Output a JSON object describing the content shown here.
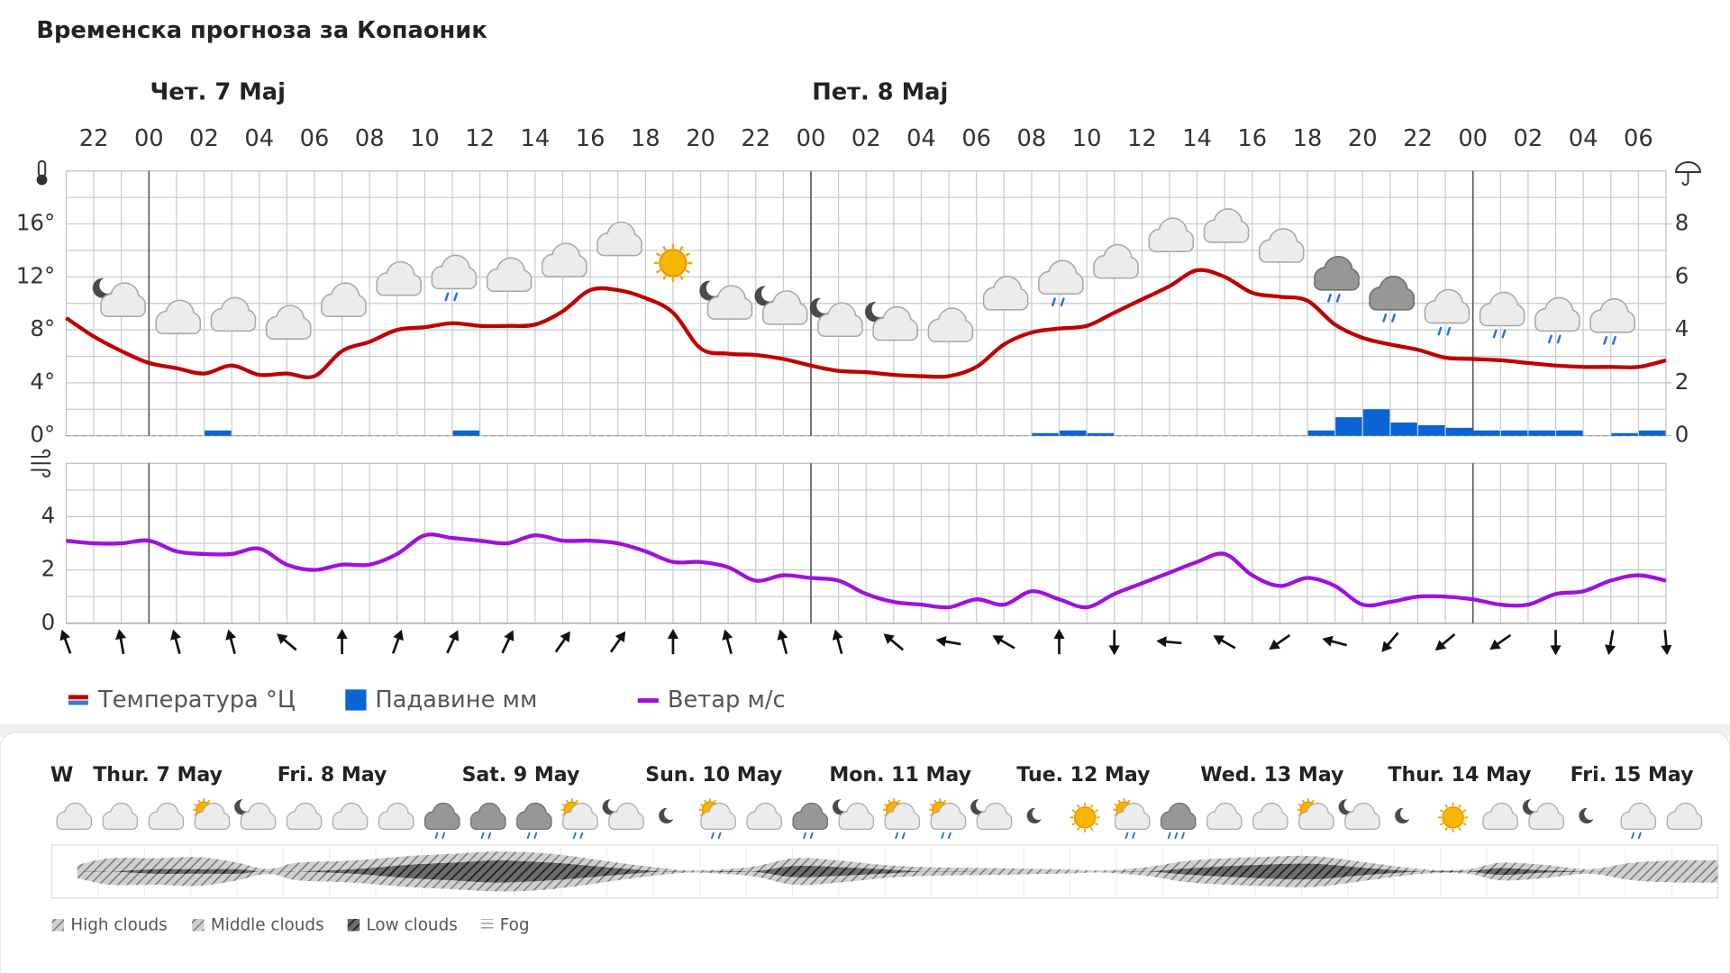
{
  "title": "Временска прогноза за Копаоник",
  "chart_data": [
    {
      "type": "line",
      "day_labels": [
        "Чет. 7 Мај",
        "Пет. 8 Мај"
      ],
      "categories": [
        null,
        "22",
        null,
        "00",
        null,
        "02",
        null,
        "04",
        null,
        "06",
        null,
        "08",
        null,
        "10",
        null,
        "12",
        null,
        "14",
        null,
        "16",
        null,
        "18",
        null,
        "20",
        null,
        "22",
        null,
        "00",
        null,
        "02",
        null,
        "04",
        null,
        "06",
        null,
        "08",
        null,
        "10",
        null,
        "12",
        null,
        "14",
        null,
        "16",
        null,
        "18",
        null,
        "20",
        null,
        "22",
        null,
        "00",
        null,
        "02",
        null,
        "04",
        null,
        "06",
        null
      ],
      "series": [
        {
          "name": "Температура °Ц",
          "color": "#c00000",
          "values": [
            8.9,
            7.5,
            6.4,
            5.5,
            5.1,
            4.7,
            5.3,
            4.6,
            4.7,
            4.5,
            6.4,
            7.1,
            8.0,
            8.2,
            8.5,
            8.3,
            8.3,
            8.4,
            9.4,
            11.0,
            11.0,
            10.4,
            9.3,
            6.6,
            6.2,
            6.1,
            5.8,
            5.3,
            4.9,
            4.8,
            4.6,
            4.5,
            4.5,
            5.2,
            6.9,
            7.8,
            8.1,
            8.3,
            9.3,
            10.3,
            11.3,
            12.5,
            12.0,
            10.8,
            10.5,
            10.2,
            8.4,
            7.4,
            6.9,
            6.5,
            5.9,
            5.8,
            5.7,
            5.5,
            5.3,
            5.2,
            5.2,
            5.2,
            5.7
          ]
        },
        {
          "name": "Падавине мм",
          "color": "#0a64d6",
          "type": "bar",
          "axis": "y2",
          "values": [
            0,
            0,
            0,
            0,
            0,
            0.2,
            0,
            0,
            0,
            0,
            0,
            0,
            0,
            0,
            0.2,
            0,
            0,
            0,
            0,
            0,
            0,
            0,
            0,
            0,
            0,
            0,
            0,
            0,
            0,
            0,
            0,
            0,
            0,
            0,
            0,
            0.1,
            0.2,
            0.1,
            0,
            0,
            0,
            0,
            0,
            0,
            0,
            0.2,
            0.7,
            1.0,
            0.5,
            0.4,
            0.3,
            0.2,
            0.2,
            0.2,
            0.2,
            0,
            0.1,
            0.2,
            null
          ]
        }
      ],
      "ylim": [
        0,
        20
      ],
      "yticks": [
        {
          "value": 0,
          "label": "0°"
        },
        {
          "value": 4,
          "label": "4°"
        },
        {
          "value": 8,
          "label": "8°"
        },
        {
          "value": 12,
          "label": "12°"
        },
        {
          "value": 16,
          "label": "16°"
        }
      ],
      "y2lim": [
        0,
        10
      ],
      "y2ticks": [
        0,
        2,
        4,
        6,
        8
      ],
      "grid": true
    },
    {
      "type": "line",
      "series": [
        {
          "name": "Ветар м/с",
          "color": "#a010e0",
          "values": [
            3.1,
            3.0,
            3.0,
            3.1,
            2.7,
            2.6,
            2.6,
            2.8,
            2.2,
            2.0,
            2.2,
            2.2,
            2.6,
            3.3,
            3.2,
            3.1,
            3.0,
            3.3,
            3.1,
            3.1,
            3.0,
            2.7,
            2.3,
            2.3,
            2.1,
            1.6,
            1.8,
            1.7,
            1.6,
            1.1,
            0.8,
            0.7,
            0.6,
            0.9,
            0.7,
            1.2,
            0.9,
            0.6,
            1.1,
            1.5,
            1.9,
            2.3,
            2.6,
            1.8,
            1.4,
            1.7,
            1.4,
            0.7,
            0.8,
            1.0,
            1.0,
            0.9,
            0.7,
            0.7,
            1.1,
            1.2,
            1.6,
            1.8,
            1.6
          ]
        }
      ],
      "wind_direction": [
        -20,
        null,
        -10,
        null,
        -15,
        null,
        -15,
        null,
        -50,
        null,
        0,
        null,
        20,
        null,
        25,
        null,
        25,
        null,
        35,
        null,
        35,
        null,
        0,
        null,
        -15,
        null,
        -15,
        null,
        -15,
        null,
        -50,
        null,
        -80,
        null,
        -60,
        null,
        0,
        null,
        180,
        null,
        -85,
        null,
        -60,
        null,
        -125,
        null,
        -75,
        null,
        -140,
        null,
        -130,
        null,
        -125,
        null,
        180,
        null,
        -170,
        null,
        175
      ],
      "ylim": [
        0,
        6
      ],
      "yticks": [
        0,
        2,
        4
      ],
      "grid": true
    }
  ],
  "week": {
    "label": "W",
    "days": [
      "Thur. 7 May",
      "Fri. 8 May",
      "Sat. 9 May",
      "Sun. 10 May",
      "Mon. 11 May",
      "Tue. 12 May",
      "Wed. 13 May",
      "Thur. 14 May",
      "Fri. 15 May"
    ],
    "legend": [
      "High clouds",
      "Middle clouds",
      "Low clouds",
      "Fog"
    ]
  }
}
